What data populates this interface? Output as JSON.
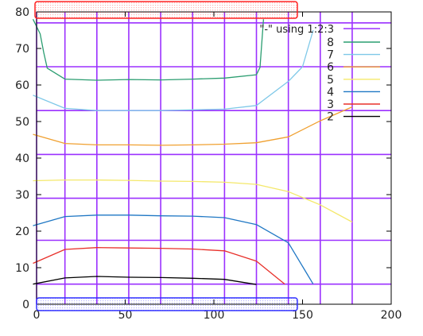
{
  "chart_data": {
    "type": "line",
    "title": "",
    "xlabel": "",
    "ylabel": "",
    "xlim": [
      0,
      200
    ],
    "ylim": [
      0,
      80
    ],
    "x_ticks": [
      0,
      50,
      100,
      150,
      200
    ],
    "y_ticks": [
      0,
      10,
      20,
      30,
      40,
      50,
      60,
      70,
      80
    ],
    "grid": false,
    "legend_position": "top-right",
    "legend_header": "\"-\" using 1:2:3",
    "vertical_lines_x": [
      0,
      16,
      34,
      52,
      70,
      88,
      106,
      124,
      142,
      160,
      178
    ],
    "horizontal_lines_y": [
      5.5,
      17.5,
      29,
      41,
      53,
      65,
      77
    ],
    "purple_line_color": "#9b30ff",
    "legend_purple_label": "",
    "highlight_boxes": [
      {
        "name": "top-red-box",
        "color": "#ff2020"
      },
      {
        "name": "bottom-blue-box",
        "color": "#3030ff"
      }
    ],
    "series": [
      {
        "name": "2",
        "color": "#000000",
        "x": [
          -2,
          16,
          34,
          52,
          70,
          88,
          106,
          124
        ],
        "y": [
          5.5,
          7.2,
          7.6,
          7.4,
          7.3,
          7.1,
          6.8,
          5.4
        ]
      },
      {
        "name": "3",
        "color": "#e8302a",
        "x": [
          -2,
          16,
          34,
          52,
          70,
          88,
          106,
          124,
          140
        ],
        "y": [
          11.2,
          15.0,
          15.5,
          15.4,
          15.3,
          15.1,
          14.6,
          11.8,
          5.5
        ]
      },
      {
        "name": "4",
        "color": "#1f77c4",
        "x": [
          -2,
          16,
          34,
          52,
          70,
          88,
          106,
          124,
          142,
          156
        ],
        "y": [
          21.5,
          24.0,
          24.4,
          24.4,
          24.2,
          24.1,
          23.7,
          21.8,
          16.8,
          5.5
        ]
      },
      {
        "name": "5",
        "color": "#f4e86a",
        "x": [
          -2,
          16,
          34,
          52,
          70,
          88,
          106,
          124,
          142,
          160,
          178
        ],
        "y": [
          33.8,
          34.0,
          34.0,
          33.9,
          33.7,
          33.6,
          33.4,
          32.8,
          30.8,
          27.2,
          22.5
        ]
      },
      {
        "name": "6",
        "color": "#f0a030",
        "x": [
          -2,
          16,
          34,
          52,
          70,
          88,
          106,
          124,
          142,
          160,
          178
        ],
        "y": [
          46.5,
          44.0,
          43.6,
          43.6,
          43.5,
          43.6,
          43.8,
          44.2,
          45.8,
          50.2,
          54.0
        ]
      },
      {
        "name": "7",
        "color": "#7ec8e8",
        "x": [
          -2,
          16,
          34,
          52,
          70,
          88,
          106,
          124,
          142,
          150,
          156
        ],
        "y": [
          57.2,
          53.6,
          53.0,
          53.0,
          53.0,
          53.2,
          53.4,
          54.4,
          61.0,
          65.0,
          75.0
        ]
      },
      {
        "name": "8",
        "color": "#2a9d70",
        "x": [
          -2,
          2,
          4,
          6,
          16,
          34,
          52,
          70,
          88,
          106,
          124,
          126,
          128
        ],
        "y": [
          78.0,
          74.0,
          69.0,
          64.6,
          61.6,
          61.3,
          61.5,
          61.4,
          61.6,
          61.9,
          62.8,
          64.8,
          78.0
        ]
      }
    ]
  }
}
